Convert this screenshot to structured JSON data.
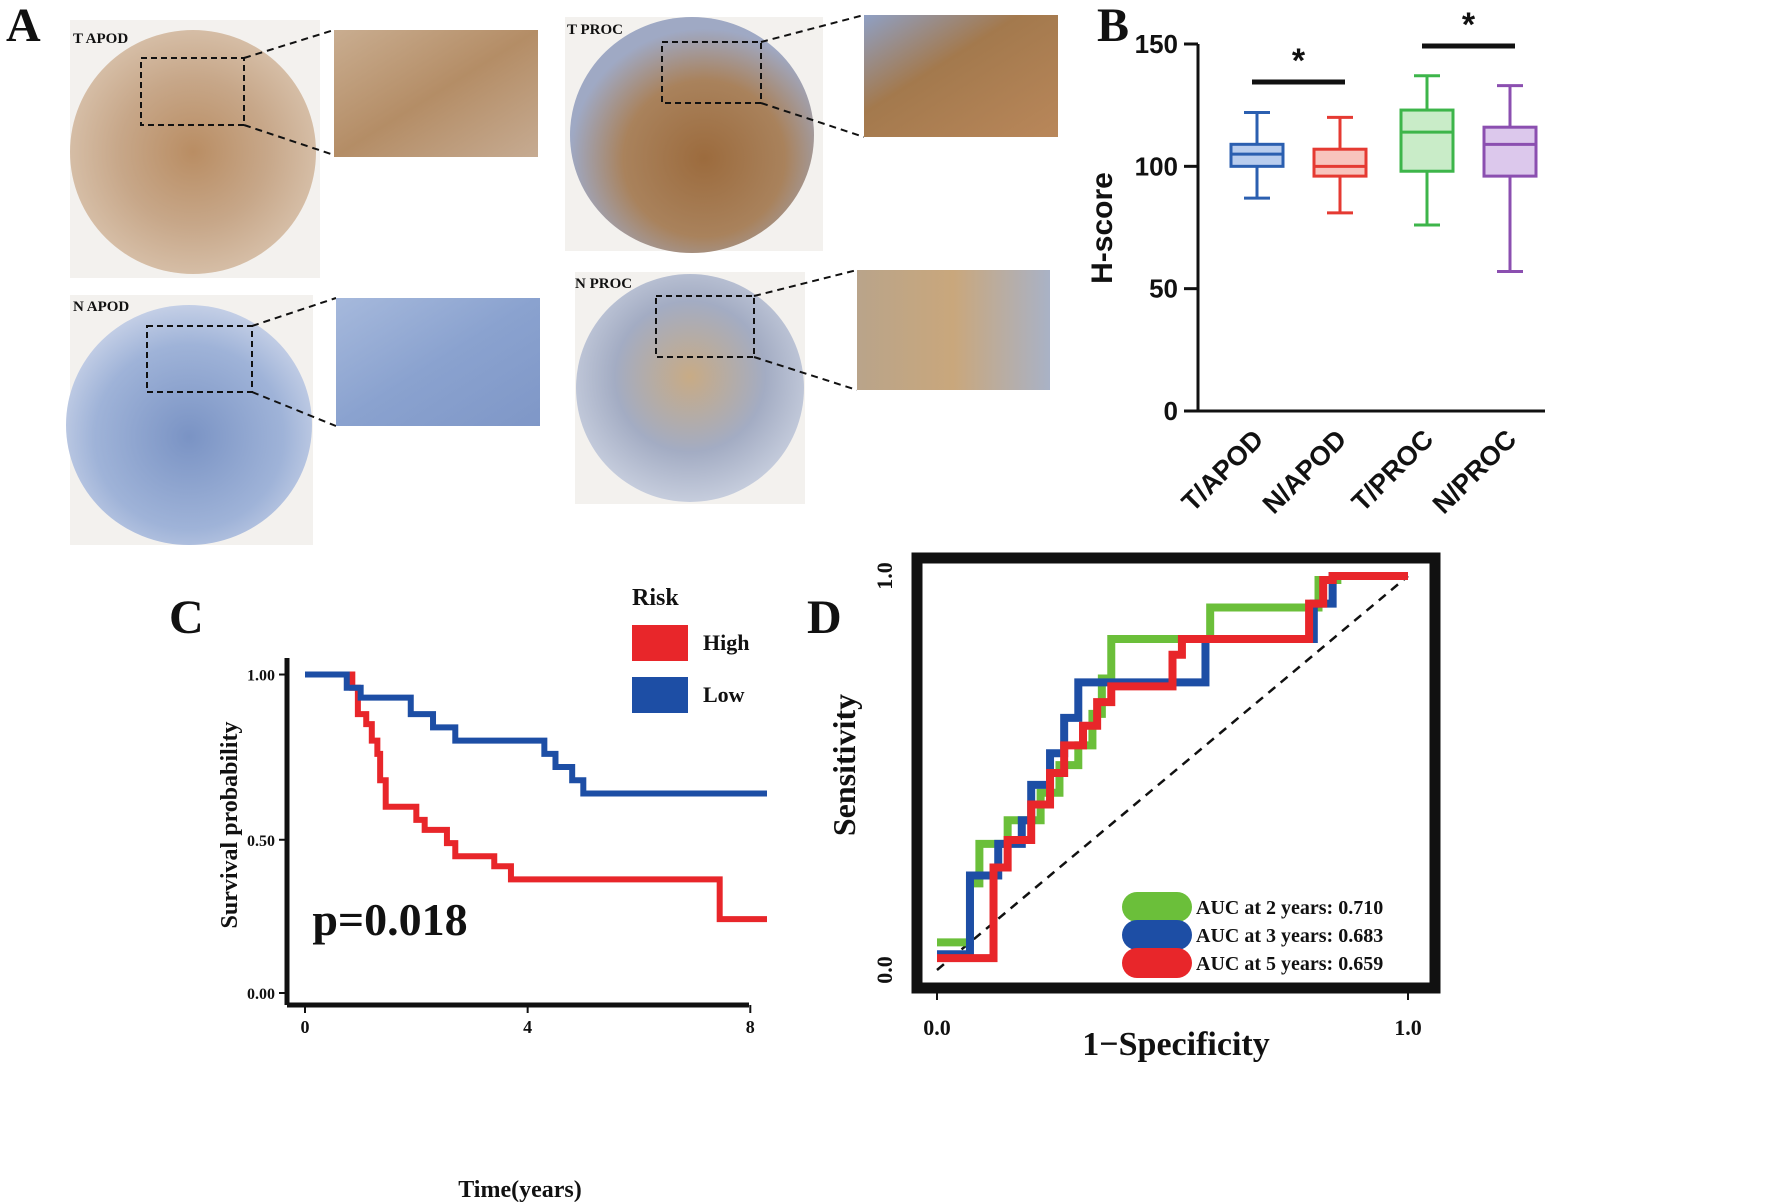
{
  "panel_letters": {
    "a": "A",
    "b": "B",
    "c": "C",
    "d": "D"
  },
  "panel_a": {
    "cores": [
      {
        "label": "T APOD",
        "stain": "brown"
      },
      {
        "label": "T PROC",
        "stain": "brown-strong"
      },
      {
        "label": "N APOD",
        "stain": "blue"
      },
      {
        "label": "N PROC",
        "stain": "mixed"
      }
    ]
  },
  "chart_data": [
    {
      "type": "box",
      "panel": "B",
      "ylabel": "H-score",
      "ylim": [
        0,
        150
      ],
      "yticks": [
        0,
        50,
        100,
        150
      ],
      "categories": [
        "T/APOD",
        "N/APOD",
        "T/PROC",
        "N/PROC"
      ],
      "boxes": [
        {
          "name": "T/APOD",
          "min": 87,
          "q1": 100,
          "median": 105,
          "q3": 109,
          "max": 122,
          "color": "#2b5fb0",
          "fill": "#b9cdee"
        },
        {
          "name": "N/APOD",
          "min": 81,
          "q1": 96,
          "median": 100,
          "q3": 107,
          "max": 120,
          "color": "#e53a32",
          "fill": "#f8c4bd"
        },
        {
          "name": "T/PROC",
          "min": 76,
          "q1": 98,
          "median": 114,
          "q3": 123,
          "max": 137,
          "color": "#3db54a",
          "fill": "#c9ecc8"
        },
        {
          "name": "N/PROC",
          "min": 57,
          "q1": 96,
          "median": 109,
          "q3": 116,
          "max": 133,
          "color": "#8b4fb0",
          "fill": "#dcc8ec"
        }
      ],
      "significance": [
        {
          "pair": [
            "T/APOD",
            "N/APOD"
          ],
          "label": "*"
        },
        {
          "pair": [
            "T/PROC",
            "N/PROC"
          ],
          "label": "*"
        }
      ]
    },
    {
      "type": "line",
      "subtype": "kaplan-meier",
      "panel": "C",
      "xlabel": "Time(years)",
      "ylabel": "Survival probability",
      "xlim": [
        0,
        8.3
      ],
      "ylim": [
        0,
        1.05
      ],
      "xticks": [
        0,
        4,
        8
      ],
      "yticks": [
        0.0,
        0.5,
        1.0
      ],
      "ytick_labels": [
        "0.00",
        "0.50",
        "1.00"
      ],
      "legend_title": "Risk",
      "annotation": "p=0.018",
      "series": [
        {
          "name": "High",
          "color": "#e8262a",
          "steps": [
            [
              0,
              1.0
            ],
            [
              0.5,
              1.0
            ],
            [
              0.85,
              0.96
            ],
            [
              0.95,
              0.88
            ],
            [
              1.1,
              0.85
            ],
            [
              1.2,
              0.8
            ],
            [
              1.3,
              0.76
            ],
            [
              1.35,
              0.68
            ],
            [
              1.45,
              0.6
            ],
            [
              2.0,
              0.56
            ],
            [
              2.15,
              0.53
            ],
            [
              2.55,
              0.49
            ],
            [
              2.7,
              0.45
            ],
            [
              3.4,
              0.42
            ],
            [
              3.7,
              0.38
            ],
            [
              7.3,
              0.38
            ],
            [
              7.45,
              0.26
            ],
            [
              8.3,
              0.26
            ]
          ]
        },
        {
          "name": "Low",
          "color": "#1d4ea5",
          "steps": [
            [
              0,
              1.0
            ],
            [
              0.5,
              1.0
            ],
            [
              0.75,
              0.96
            ],
            [
              1.0,
              0.93
            ],
            [
              1.9,
              0.88
            ],
            [
              2.3,
              0.84
            ],
            [
              2.7,
              0.8
            ],
            [
              4.3,
              0.76
            ],
            [
              4.5,
              0.72
            ],
            [
              4.8,
              0.68
            ],
            [
              5.0,
              0.64
            ],
            [
              8.3,
              0.64
            ]
          ]
        }
      ]
    },
    {
      "type": "line",
      "subtype": "roc",
      "panel": "D",
      "xlabel": "1−Specificity",
      "ylabel": "Sensitivity",
      "xlim": [
        0,
        1
      ],
      "ylim": [
        0,
        1
      ],
      "xticks": [
        0.0,
        1.0
      ],
      "yticks": [
        0.0,
        1.0
      ],
      "tick_labels": [
        "0.0",
        "1.0"
      ],
      "diagonal": true,
      "series": [
        {
          "name": "AUC at 2 years: 0.710",
          "color": "#6bbf3a",
          "points": [
            [
              0,
              0.07
            ],
            [
              0.07,
              0.07
            ],
            [
              0.07,
              0.22
            ],
            [
              0.09,
              0.22
            ],
            [
              0.09,
              0.32
            ],
            [
              0.15,
              0.32
            ],
            [
              0.15,
              0.38
            ],
            [
              0.22,
              0.38
            ],
            [
              0.22,
              0.45
            ],
            [
              0.26,
              0.45
            ],
            [
              0.26,
              0.52
            ],
            [
              0.3,
              0.52
            ],
            [
              0.3,
              0.57
            ],
            [
              0.33,
              0.57
            ],
            [
              0.33,
              0.65
            ],
            [
              0.35,
              0.65
            ],
            [
              0.35,
              0.74
            ],
            [
              0.37,
              0.74
            ],
            [
              0.37,
              0.84
            ],
            [
              0.58,
              0.84
            ],
            [
              0.58,
              0.92
            ],
            [
              0.81,
              0.92
            ],
            [
              0.81,
              0.99
            ],
            [
              0.85,
              0.99
            ],
            [
              0.85,
              1.0
            ],
            [
              1.0,
              1.0
            ]
          ]
        },
        {
          "name": "AUC at 3 years: 0.683",
          "color": "#1d4ea5",
          "points": [
            [
              0,
              0.04
            ],
            [
              0.07,
              0.04
            ],
            [
              0.07,
              0.24
            ],
            [
              0.13,
              0.24
            ],
            [
              0.13,
              0.32
            ],
            [
              0.18,
              0.32
            ],
            [
              0.18,
              0.38
            ],
            [
              0.2,
              0.38
            ],
            [
              0.2,
              0.47
            ],
            [
              0.24,
              0.47
            ],
            [
              0.24,
              0.55
            ],
            [
              0.27,
              0.55
            ],
            [
              0.27,
              0.64
            ],
            [
              0.3,
              0.64
            ],
            [
              0.3,
              0.73
            ],
            [
              0.57,
              0.73
            ],
            [
              0.57,
              0.84
            ],
            [
              0.8,
              0.84
            ],
            [
              0.8,
              0.93
            ],
            [
              0.84,
              0.93
            ],
            [
              0.84,
              1.0
            ],
            [
              1.0,
              1.0
            ]
          ]
        },
        {
          "name": "AUC at 5 years: 0.659",
          "color": "#e8262a",
          "points": [
            [
              0,
              0.03
            ],
            [
              0.12,
              0.03
            ],
            [
              0.12,
              0.26
            ],
            [
              0.15,
              0.26
            ],
            [
              0.15,
              0.33
            ],
            [
              0.2,
              0.33
            ],
            [
              0.2,
              0.42
            ],
            [
              0.24,
              0.42
            ],
            [
              0.24,
              0.5
            ],
            [
              0.27,
              0.5
            ],
            [
              0.27,
              0.57
            ],
            [
              0.31,
              0.57
            ],
            [
              0.31,
              0.62
            ],
            [
              0.34,
              0.62
            ],
            [
              0.34,
              0.68
            ],
            [
              0.37,
              0.68
            ],
            [
              0.37,
              0.72
            ],
            [
              0.5,
              0.72
            ],
            [
              0.5,
              0.8
            ],
            [
              0.52,
              0.8
            ],
            [
              0.52,
              0.84
            ],
            [
              0.79,
              0.84
            ],
            [
              0.79,
              0.93
            ],
            [
              0.82,
              0.93
            ],
            [
              0.82,
              0.99
            ],
            [
              0.84,
              0.99
            ],
            [
              0.84,
              1.0
            ],
            [
              1.0,
              1.0
            ]
          ]
        }
      ]
    }
  ]
}
